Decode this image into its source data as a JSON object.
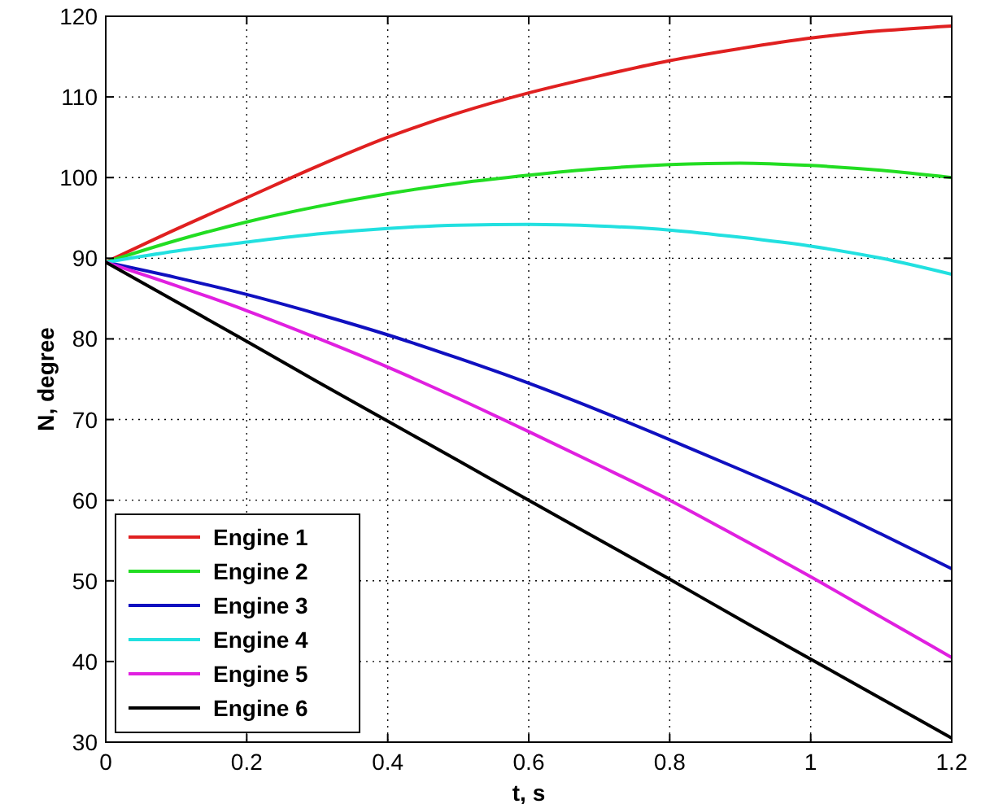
{
  "chart_data": {
    "type": "line",
    "xlabel": "t, s",
    "ylabel": "N, degree",
    "x": [
      0,
      0.1,
      0.2,
      0.3,
      0.4,
      0.5,
      0.6,
      0.7,
      0.8,
      0.9,
      1.0,
      1.1,
      1.2
    ],
    "series": [
      {
        "name": "Engine 1",
        "color": "#e02020",
        "values": [
          89.5,
          93.6,
          97.5,
          101.4,
          105,
          108,
          110.5,
          112.6,
          114.5,
          116,
          117.3,
          118.2,
          118.8
        ]
      },
      {
        "name": "Engine 2",
        "color": "#22dd22",
        "values": [
          89.5,
          92.2,
          94.5,
          96.4,
          98,
          99.3,
          100.3,
          101.1,
          101.6,
          101.8,
          101.5,
          100.9,
          100
        ]
      },
      {
        "name": "Engine 3",
        "color": "#1010c0",
        "values": [
          89.5,
          87.6,
          85.5,
          83.1,
          80.5,
          77.6,
          74.5,
          71.1,
          67.5,
          63.8,
          60,
          55.8,
          51.5
        ]
      },
      {
        "name": "Engine 4",
        "color": "#22e0e0",
        "values": [
          89.5,
          90.9,
          92,
          93,
          93.7,
          94.1,
          94.2,
          94,
          93.5,
          92.6,
          91.5,
          90,
          88
        ]
      },
      {
        "name": "Engine 5",
        "color": "#e020e0",
        "values": [
          89.5,
          86.6,
          83.5,
          80.1,
          76.5,
          72.6,
          68.5,
          64.3,
          60,
          55.3,
          50.5,
          45.5,
          40.5
        ]
      },
      {
        "name": "Engine 6",
        "color": "#000000",
        "values": [
          89.5,
          84.6,
          79.7,
          74.7,
          69.8,
          64.9,
          60,
          55.1,
          50.2,
          45.2,
          40.3,
          35.4,
          30.5
        ]
      }
    ],
    "xlim": [
      0,
      1.2
    ],
    "ylim": [
      30,
      120
    ],
    "xticks": [
      0,
      0.2,
      0.4,
      0.6,
      0.8,
      1,
      1.2
    ],
    "yticks": [
      30,
      40,
      50,
      60,
      70,
      80,
      90,
      100,
      110,
      120
    ],
    "grid": true,
    "legend": "bottom left",
    "line_style": "solid"
  }
}
